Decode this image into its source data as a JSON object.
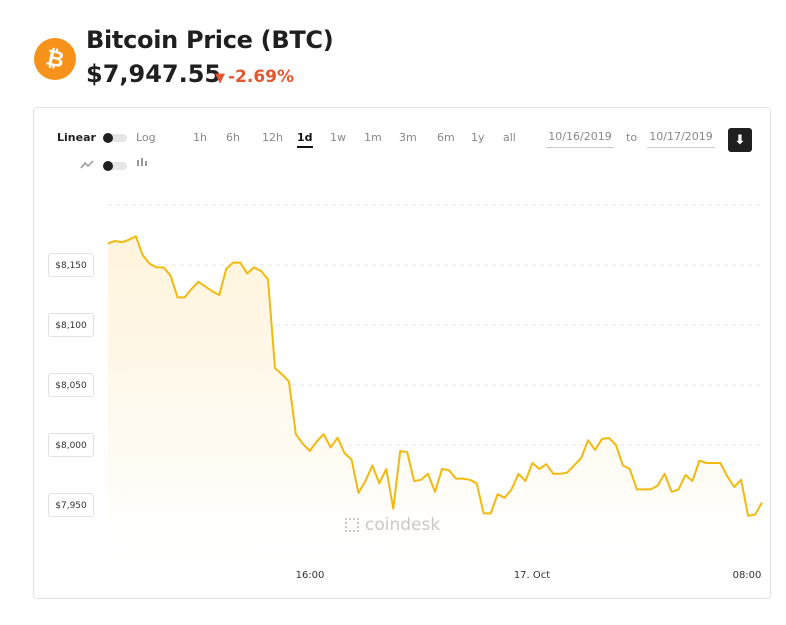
{
  "header": {
    "logo_letter": "₿",
    "title": "Bitcoin Price (BTC)",
    "price": "$7,947.55",
    "change": "-2.69%",
    "change_color": "#e4572e",
    "brand_color": "#f7931a"
  },
  "controls": {
    "scale_linear": "Linear",
    "scale_log": "Log",
    "ranges": [
      "1h",
      "6h",
      "12h",
      "1d",
      "1w",
      "1m",
      "3m",
      "6m",
      "1y",
      "all"
    ],
    "active_range": "1d",
    "date_from": "10/16/2019",
    "date_to_label": "to",
    "date_to": "10/17/2019",
    "download_icon": "download-icon",
    "line_icon": "line-chart-icon",
    "candle_icon": "candlestick-icon"
  },
  "watermark": "coindesk",
  "chart_data": {
    "type": "area",
    "line_color": "#f2b90f",
    "fill_color": "#fff4dc",
    "yticks": [
      "$8,150",
      "$8,100",
      "$8,050",
      "$8,000",
      "$7,950"
    ],
    "ytick_values": [
      8150,
      8100,
      8050,
      8000,
      7950
    ],
    "xticks": [
      "16:00",
      "17. Oct",
      "08:00"
    ],
    "ylim": [
      7915,
      8200
    ],
    "grid": true,
    "values": [
      8168,
      8170,
      8169,
      8171,
      8174,
      8158,
      8151,
      8148,
      8148,
      8141,
      8123,
      8123,
      8130,
      8136,
      8132,
      8128,
      8125,
      8147,
      8152,
      8152,
      8143,
      8148,
      8145,
      8138,
      8064,
      8059,
      8053,
      8009,
      8001,
      7995,
      8003,
      8009,
      7998,
      8006,
      7993,
      7988,
      7960,
      7970,
      7983,
      7968,
      7980,
      7947,
      7995,
      7994,
      7970,
      7971,
      7976,
      7961,
      7980,
      7979,
      7972,
      7972,
      7971,
      7968,
      7943,
      7943,
      7959,
      7956,
      7963,
      7976,
      7970,
      7985,
      7980,
      7984,
      7976,
      7976,
      7977,
      7983,
      7989,
      8004,
      7996,
      8005,
      8006,
      8000,
      7983,
      7980,
      7963,
      7963,
      7963,
      7966,
      7976,
      7961,
      7963,
      7975,
      7970,
      7987,
      7985,
      7985,
      7985,
      7974,
      7965,
      7971,
      7941,
      7942,
      7952
    ]
  }
}
